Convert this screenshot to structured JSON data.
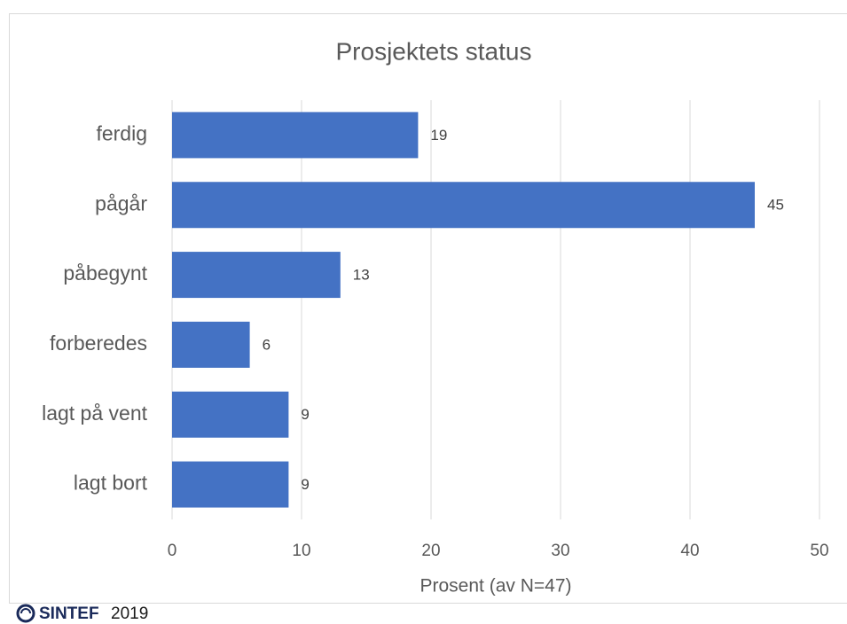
{
  "chart_data": {
    "type": "bar",
    "orientation": "horizontal",
    "title": "Prosjektets status",
    "categories": [
      "ferdig",
      "pågår",
      "påbegynt",
      "forberedes",
      "lagt på vent",
      "lagt bort"
    ],
    "values": [
      19,
      45,
      13,
      6,
      9,
      9
    ],
    "color": "#4472c4",
    "xlabel": "Prosent (av N=47)",
    "xlim": [
      0,
      50
    ],
    "xticks": [
      0,
      10,
      20,
      30,
      40,
      50
    ],
    "grid": true
  },
  "footer": {
    "logo": "SINTEF",
    "year": "2019"
  }
}
